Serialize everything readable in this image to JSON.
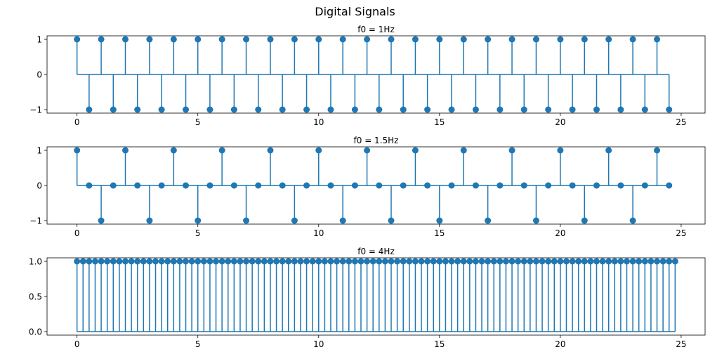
{
  "figure": {
    "title": "Digital Signals"
  },
  "style": {
    "stem_color": "#1f77b4",
    "baseline_color": "#1f77b4",
    "marker_color": "#1f77b4"
  },
  "chart_data": [
    {
      "type": "stem",
      "title": "f0 = 1Hz",
      "sample_step": 0.5,
      "n_samples": 50,
      "formula": "cos(2*pi*1*t)",
      "xlim": [
        -1.24,
        25.99
      ],
      "ylim": [
        -1.1,
        1.1
      ],
      "xticks": [
        0,
        5,
        10,
        15,
        20,
        25
      ],
      "xtick_labels": [
        "0",
        "5",
        "10",
        "15",
        "20",
        "25"
      ],
      "yticks": [
        -1,
        0,
        1
      ],
      "ytick_labels": [
        "−1",
        "0",
        "1"
      ],
      "grid": false,
      "xlabel": "",
      "ylabel": ""
    },
    {
      "type": "stem",
      "title": "f0 = 1.5Hz",
      "sample_step": 0.5,
      "n_samples": 50,
      "formula": "cos(2*pi*1.5*t)",
      "xlim": [
        -1.24,
        25.99
      ],
      "ylim": [
        -1.1,
        1.1
      ],
      "xticks": [
        0,
        5,
        10,
        15,
        20,
        25
      ],
      "xtick_labels": [
        "0",
        "5",
        "10",
        "15",
        "20",
        "25"
      ],
      "yticks": [
        -1,
        0,
        1
      ],
      "ytick_labels": [
        "−1",
        "0",
        "1"
      ],
      "grid": false,
      "xlabel": "",
      "ylabel": ""
    },
    {
      "type": "stem",
      "title": "f0 = 4Hz",
      "sample_step": 0.25,
      "n_samples": 100,
      "formula": "cos(2*pi*4*t)",
      "xlim": [
        -1.24,
        25.99
      ],
      "ylim": [
        -0.05,
        1.05
      ],
      "xticks": [
        0,
        5,
        10,
        15,
        20,
        25
      ],
      "xtick_labels": [
        "0",
        "5",
        "10",
        "15",
        "20",
        "25"
      ],
      "yticks": [
        0.0,
        0.5,
        1.0
      ],
      "ytick_labels": [
        "0.0",
        "0.5",
        "1.0"
      ],
      "grid": false,
      "xlabel": "",
      "ylabel": ""
    }
  ]
}
